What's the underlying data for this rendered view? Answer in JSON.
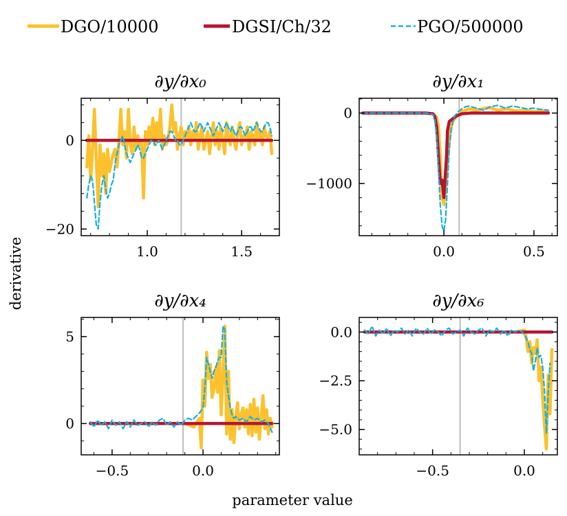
{
  "figure": {
    "xlabel": "parameter value",
    "ylabel": "derivative"
  },
  "legend": [
    {
      "label": "DGO/10000",
      "color": "#fcc12d",
      "style": "solid"
    },
    {
      "label": "DGSI/Ch/32",
      "color": "#b7142f",
      "style": "solid"
    },
    {
      "label": "PGO/500000",
      "color": "#13b0e0",
      "style": "dashed"
    }
  ],
  "chart_data": [
    {
      "type": "line",
      "title": "∂y/∂x₀",
      "xlim": [
        0.65,
        1.7
      ],
      "ylim": [
        -21.5,
        9.5
      ],
      "xticks": [
        {
          "v": 1.0,
          "label": "1.0"
        },
        {
          "v": 1.5,
          "label": "1.5"
        }
      ],
      "yticks": [
        {
          "v": 0,
          "label": "0"
        },
        {
          "v": -20,
          "label": "−20"
        }
      ],
      "reference_x": 1.18,
      "series": [
        {
          "name": "DGO/10000",
          "x": [
            0.68,
            0.69,
            0.7,
            0.71,
            0.72,
            0.73,
            0.74,
            0.75,
            0.76,
            0.77,
            0.78,
            0.79,
            0.8,
            0.81,
            0.82,
            0.83,
            0.84,
            0.85,
            0.86,
            0.87,
            0.88,
            0.89,
            0.9,
            0.91,
            0.92,
            0.93,
            0.94,
            0.95,
            0.96,
            0.97,
            0.98,
            0.99,
            1.0,
            1.01,
            1.02,
            1.03,
            1.04,
            1.05,
            1.06,
            1.07,
            1.08,
            1.09,
            1.1,
            1.11,
            1.12,
            1.13,
            1.14,
            1.15,
            1.16,
            1.17,
            1.18,
            1.19,
            1.2,
            1.21,
            1.22,
            1.23,
            1.24,
            1.25,
            1.26,
            1.27,
            1.28,
            1.29,
            1.3,
            1.31,
            1.32,
            1.33,
            1.34,
            1.35,
            1.36,
            1.37,
            1.38,
            1.39,
            1.4,
            1.41,
            1.42,
            1.43,
            1.44,
            1.45,
            1.46,
            1.47,
            1.48,
            1.49,
            1.5,
            1.51,
            1.52,
            1.53,
            1.54,
            1.55,
            1.56,
            1.57,
            1.58,
            1.59,
            1.6,
            1.61,
            1.62,
            1.63,
            1.64,
            1.65,
            1.66
          ],
          "y": [
            -6,
            1,
            -9,
            -2,
            7,
            -4,
            -15,
            -1,
            -8,
            -3,
            -12,
            -2,
            -7,
            -5,
            -3,
            -2,
            -6,
            0,
            7,
            -1,
            2,
            -4,
            7,
            -1,
            -3,
            3,
            -2,
            1,
            -1,
            0,
            -13,
            2,
            -1,
            3,
            0,
            5,
            -1,
            4,
            0,
            7,
            -2,
            1,
            -1,
            0,
            3,
            8,
            2,
            4,
            -2,
            1,
            3,
            -1,
            2,
            0,
            3,
            -1,
            2,
            0,
            4,
            -2,
            1,
            3,
            -2,
            0,
            2,
            -3,
            1,
            4,
            -1,
            2,
            -2,
            3,
            0,
            -3,
            4,
            1,
            -1,
            3,
            0,
            -2,
            2,
            4,
            -1,
            1,
            0,
            3,
            -2,
            2,
            1,
            -1,
            4,
            0,
            2,
            -1,
            3,
            1,
            0,
            2,
            -3
          ]
        },
        {
          "name": "DGSI/Ch/32",
          "x": [
            0.68,
            1.66
          ],
          "y": [
            0,
            0
          ]
        },
        {
          "name": "PGO/500000",
          "x": [
            0.68,
            0.69,
            0.7,
            0.71,
            0.72,
            0.73,
            0.74,
            0.75,
            0.76,
            0.77,
            0.78,
            0.79,
            0.8,
            0.81,
            0.82,
            0.83,
            0.84,
            0.85,
            0.86,
            0.87,
            0.88,
            0.89,
            0.9,
            0.91,
            0.92,
            0.93,
            0.94,
            0.95,
            0.96,
            0.97,
            0.98,
            0.99,
            1.0,
            1.01,
            1.02,
            1.03,
            1.04,
            1.05,
            1.06,
            1.07,
            1.08,
            1.09,
            1.1,
            1.11,
            1.12,
            1.13,
            1.14,
            1.15,
            1.16,
            1.17,
            1.18,
            1.19,
            1.2,
            1.21,
            1.22,
            1.23,
            1.24,
            1.25,
            1.26,
            1.27,
            1.28,
            1.29,
            1.3,
            1.31,
            1.32,
            1.33,
            1.34,
            1.35,
            1.36,
            1.37,
            1.38,
            1.39,
            1.4,
            1.41,
            1.42,
            1.43,
            1.44,
            1.45,
            1.46,
            1.47,
            1.48,
            1.49,
            1.5,
            1.51,
            1.52,
            1.53,
            1.54,
            1.55,
            1.56,
            1.57,
            1.58,
            1.59,
            1.6,
            1.61,
            1.62,
            1.63,
            1.64,
            1.65,
            1.66
          ],
          "y": [
            -13,
            -10,
            -8,
            -9,
            -14,
            -19,
            -20,
            -14,
            -10,
            -8,
            -11,
            -13,
            -12,
            -10,
            -9,
            -5,
            -3,
            -1,
            0,
            1,
            -1,
            -3,
            -4,
            -5,
            -4,
            -3,
            -2,
            -1,
            -2,
            -4,
            -4,
            -3,
            -2,
            -1,
            0,
            0,
            -1,
            -1,
            0,
            -1,
            -2,
            -1,
            0,
            1,
            2,
            2,
            1,
            0,
            0,
            -1,
            -1,
            0,
            1,
            2,
            3,
            4,
            3,
            2,
            2,
            3,
            4,
            3,
            2,
            3,
            4,
            3,
            2,
            1,
            2,
            3,
            4,
            3,
            2,
            3,
            4,
            3,
            2,
            3,
            2,
            1,
            2,
            3,
            3,
            2,
            1,
            2,
            3,
            3,
            2,
            3,
            4,
            3,
            2,
            2,
            3,
            4,
            4,
            3,
            1
          ]
        }
      ]
    },
    {
      "type": "line",
      "title": "∂y/∂x₁",
      "xlim": [
        -0.47,
        0.63
      ],
      "ylim": [
        -1740,
        210
      ],
      "xticks": [
        {
          "v": 0.0,
          "label": "0.0"
        },
        {
          "v": 0.5,
          "label": "0.5"
        }
      ],
      "yticks": [
        {
          "v": 0,
          "label": "0"
        },
        {
          "v": -1000,
          "label": "−1000"
        }
      ],
      "reference_x": 0.085,
      "series": [
        {
          "name": "DGO/10000",
          "x": [
            -0.45,
            -0.1,
            -0.06,
            -0.04,
            -0.03,
            -0.02,
            -0.01,
            0.0,
            0.01,
            0.02,
            0.03,
            0.04,
            0.05,
            0.06,
            0.08,
            0.1,
            0.14,
            0.18,
            0.25,
            0.3,
            0.35,
            0.4,
            0.45,
            0.5,
            0.55,
            0.58
          ],
          "y": [
            0,
            0,
            -10,
            -60,
            -200,
            -600,
            -1200,
            -1300,
            -1000,
            -700,
            -400,
            -200,
            -120,
            -80,
            -30,
            20,
            60,
            40,
            80,
            40,
            60,
            30,
            40,
            20,
            30,
            10
          ]
        },
        {
          "name": "DGSI/Ch/32",
          "x": [
            -0.45,
            -0.1,
            -0.06,
            -0.05,
            -0.04,
            -0.03,
            -0.02,
            -0.01,
            0.0,
            0.01,
            0.015,
            0.02,
            0.03,
            0.04,
            0.05,
            0.07,
            0.1,
            0.15,
            0.25,
            0.35,
            0.45,
            0.58
          ],
          "y": [
            0,
            0,
            -10,
            -50,
            -200,
            -600,
            -1000,
            -950,
            -1200,
            -800,
            -600,
            -250,
            -120,
            -100,
            -80,
            -40,
            -10,
            0,
            0,
            0,
            0,
            0
          ]
        },
        {
          "name": "PGO/500000",
          "x": [
            -0.45,
            -0.1,
            -0.06,
            -0.05,
            -0.04,
            -0.03,
            -0.02,
            -0.01,
            0.0,
            0.01,
            0.02,
            0.03,
            0.04,
            0.05,
            0.06,
            0.08,
            0.1,
            0.12,
            0.14,
            0.18,
            0.22,
            0.26,
            0.3,
            0.34,
            0.38,
            0.42,
            0.46,
            0.5,
            0.54,
            0.58
          ],
          "y": [
            0,
            0,
            -20,
            -100,
            -350,
            -800,
            -1300,
            -1600,
            -1680,
            -1500,
            -1000,
            -500,
            -250,
            -120,
            -40,
            20,
            60,
            90,
            100,
            70,
            40,
            90,
            110,
            70,
            100,
            80,
            60,
            70,
            50,
            40
          ]
        }
      ]
    },
    {
      "type": "line",
      "title": "∂y/∂x₄",
      "xlim": [
        -0.67,
        0.42
      ],
      "ylim": [
        -1.8,
        6.1
      ],
      "xticks": [
        {
          "v": -0.5,
          "label": "−0.5"
        },
        {
          "v": 0.0,
          "label": "0.0"
        }
      ],
      "yticks": [
        {
          "v": 0,
          "label": "0"
        },
        {
          "v": 5,
          "label": "5"
        }
      ],
      "reference_x": -0.11,
      "series": [
        {
          "name": "DGO/10000",
          "x": [
            -0.62,
            -0.4,
            -0.2,
            -0.1,
            -0.05,
            -0.02,
            -0.01,
            0.0,
            0.01,
            0.02,
            0.03,
            0.04,
            0.05,
            0.06,
            0.07,
            0.08,
            0.09,
            0.1,
            0.11,
            0.12,
            0.13,
            0.14,
            0.15,
            0.16,
            0.17,
            0.18,
            0.19,
            0.2,
            0.21,
            0.22,
            0.23,
            0.24,
            0.25,
            0.26,
            0.27,
            0.28,
            0.29,
            0.3,
            0.31,
            0.32,
            0.33,
            0.34,
            0.35,
            0.36,
            0.37,
            0.38
          ],
          "y": [
            0,
            0,
            0,
            0,
            -0.2,
            0.3,
            -1.4,
            2.5,
            1.0,
            4.1,
            2.6,
            3.4,
            1.5,
            2.0,
            3.2,
            1.8,
            4.2,
            0.5,
            2.8,
            5.6,
            -0.6,
            3.0,
            -0.9,
            0.8,
            -1.1,
            0.4,
            1.2,
            -0.3,
            0.5,
            0.9,
            -0.2,
            0.8,
            -0.6,
            1.1,
            -0.7,
            1.4,
            -0.5,
            0.9,
            -0.9,
            0.4,
            1.6,
            -0.3,
            0.8,
            -0.6,
            0.3,
            -0.2
          ]
        },
        {
          "name": "DGSI/Ch/32",
          "x": [
            -0.62,
            0.38
          ],
          "y": [
            0,
            0
          ]
        },
        {
          "name": "PGO/500000",
          "x": [
            -0.62,
            -0.6,
            -0.58,
            -0.56,
            -0.54,
            -0.52,
            -0.5,
            -0.48,
            -0.46,
            -0.44,
            -0.42,
            -0.4,
            -0.38,
            -0.36,
            -0.34,
            -0.32,
            -0.3,
            -0.28,
            -0.26,
            -0.24,
            -0.22,
            -0.2,
            -0.18,
            -0.16,
            -0.14,
            -0.12,
            -0.1,
            -0.08,
            -0.06,
            -0.04,
            -0.02,
            0.0,
            0.01,
            0.02,
            0.03,
            0.04,
            0.05,
            0.06,
            0.07,
            0.08,
            0.09,
            0.1,
            0.11,
            0.12,
            0.13,
            0.14,
            0.15,
            0.16,
            0.17,
            0.18,
            0.2,
            0.22,
            0.24,
            0.26,
            0.28,
            0.3,
            0.32,
            0.34,
            0.36,
            0.38
          ],
          "y": [
            0.1,
            -0.2,
            0.2,
            -0.1,
            0.1,
            -0.3,
            0.2,
            -0.1,
            0.1,
            -0.3,
            0.1,
            -0.2,
            0.2,
            -0.1,
            0.0,
            0.1,
            -0.2,
            0.1,
            -0.1,
            0.2,
            0.3,
            -0.1,
            0.1,
            -0.2,
            0.1,
            -0.1,
            0.2,
            0.3,
            0.2,
            0.4,
            0.6,
            0.9,
            2.0,
            3.8,
            3.4,
            3.0,
            2.6,
            3.0,
            3.2,
            3.6,
            3.8,
            3.8,
            5.6,
            5.4,
            2.4,
            1.6,
            0.9,
            0.5,
            0.3,
            0.4,
            0.2,
            0.3,
            0.1,
            0.4,
            0.2,
            0.3,
            0.1,
            0.2,
            0.0,
            -0.5
          ]
        }
      ]
    },
    {
      "type": "line",
      "title": "∂y/∂x₆",
      "xlim": [
        -0.9,
        0.18
      ],
      "ylim": [
        -6.3,
        0.75
      ],
      "xticks": [
        {
          "v": -0.5,
          "label": "−0.5"
        },
        {
          "v": 0.0,
          "label": "0.0"
        }
      ],
      "yticks": [
        {
          "v": 0,
          "label": "0.0"
        },
        {
          "v": -2.5,
          "label": "−2.5"
        },
        {
          "v": -5,
          "label": "−5.0"
        }
      ],
      "reference_x": -0.35,
      "series": [
        {
          "name": "DGO/10000",
          "x": [
            -0.87,
            -0.2,
            -0.05,
            0.0,
            0.01,
            0.02,
            0.03,
            0.04,
            0.05,
            0.06,
            0.07,
            0.08,
            0.09,
            0.1,
            0.11,
            0.12,
            0.13,
            0.14,
            0.15
          ],
          "y": [
            0,
            0,
            0,
            0.1,
            -0.3,
            -1.0,
            -0.5,
            -1.6,
            -0.8,
            -1.1,
            -0.4,
            -2.5,
            -1.8,
            -3.4,
            -4.8,
            -6.0,
            -2.2,
            -4.2,
            -0.9
          ]
        },
        {
          "name": "DGSI/Ch/32",
          "x": [
            -0.87,
            0.15
          ],
          "y": [
            0,
            0
          ]
        },
        {
          "name": "PGO/500000",
          "x": [
            -0.87,
            -0.85,
            -0.83,
            -0.81,
            -0.79,
            -0.77,
            -0.75,
            -0.73,
            -0.71,
            -0.69,
            -0.67,
            -0.65,
            -0.63,
            -0.61,
            -0.59,
            -0.57,
            -0.55,
            -0.53,
            -0.51,
            -0.49,
            -0.47,
            -0.45,
            -0.43,
            -0.41,
            -0.39,
            -0.37,
            -0.35,
            -0.33,
            -0.31,
            -0.29,
            -0.27,
            -0.25,
            -0.23,
            -0.21,
            -0.19,
            -0.17,
            -0.15,
            -0.13,
            -0.11,
            -0.09,
            -0.07,
            -0.05,
            -0.03,
            -0.01,
            0.01,
            0.02,
            0.03,
            0.04,
            0.05,
            0.06,
            0.07,
            0.08,
            0.09,
            0.1,
            0.11,
            0.12,
            0.13,
            0.14
          ],
          "y": [
            0.1,
            -0.1,
            0.3,
            -0.2,
            0.1,
            -0.1,
            0.2,
            -0.2,
            0.1,
            0.0,
            0.2,
            -0.1,
            0.1,
            -0.2,
            0.2,
            0.0,
            -0.1,
            0.2,
            -0.1,
            0.1,
            0.0,
            -0.2,
            0.1,
            0.2,
            -0.1,
            0.0,
            0.1,
            -0.2,
            0.2,
            0.0,
            -0.1,
            0.1,
            0.2,
            -0.2,
            0.1,
            0.0,
            0.2,
            -0.1,
            0.1,
            -0.2,
            0.1,
            0.0,
            0.1,
            0.0,
            -0.3,
            -0.5,
            -0.9,
            -1.1,
            -2.0,
            -1.5,
            -0.8,
            -1.3,
            -1.2,
            -1.8,
            -3.0,
            -5.2,
            -3.1,
            -1.6
          ]
        }
      ]
    }
  ]
}
